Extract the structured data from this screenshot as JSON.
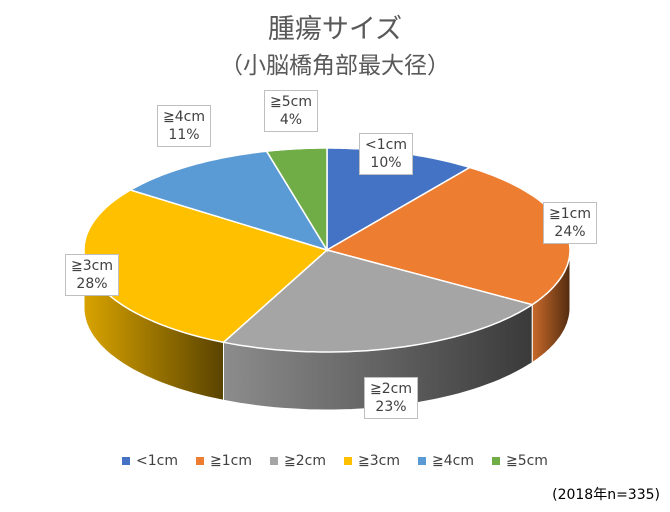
{
  "chart_data": {
    "type": "pie",
    "title": "腫瘍サイズ",
    "subtitle": "（小脳橋角部最大径）",
    "categories": [
      "<1cm",
      "≧1cm",
      "≧2cm",
      "≧3cm",
      "≧4cm",
      "≧5cm"
    ],
    "values": [
      10,
      24,
      23,
      28,
      11,
      4
    ],
    "value_labels": [
      "10%",
      "24%",
      "23%",
      "28%",
      "11%",
      "4%"
    ],
    "colors": [
      "#4472C4",
      "#ED7D31",
      "#A5A5A5",
      "#FFC000",
      "#5B9BD5",
      "#70AD47"
    ],
    "legend_position": "bottom",
    "style": "3d-pie"
  },
  "footnote": "(2018年n=335)"
}
